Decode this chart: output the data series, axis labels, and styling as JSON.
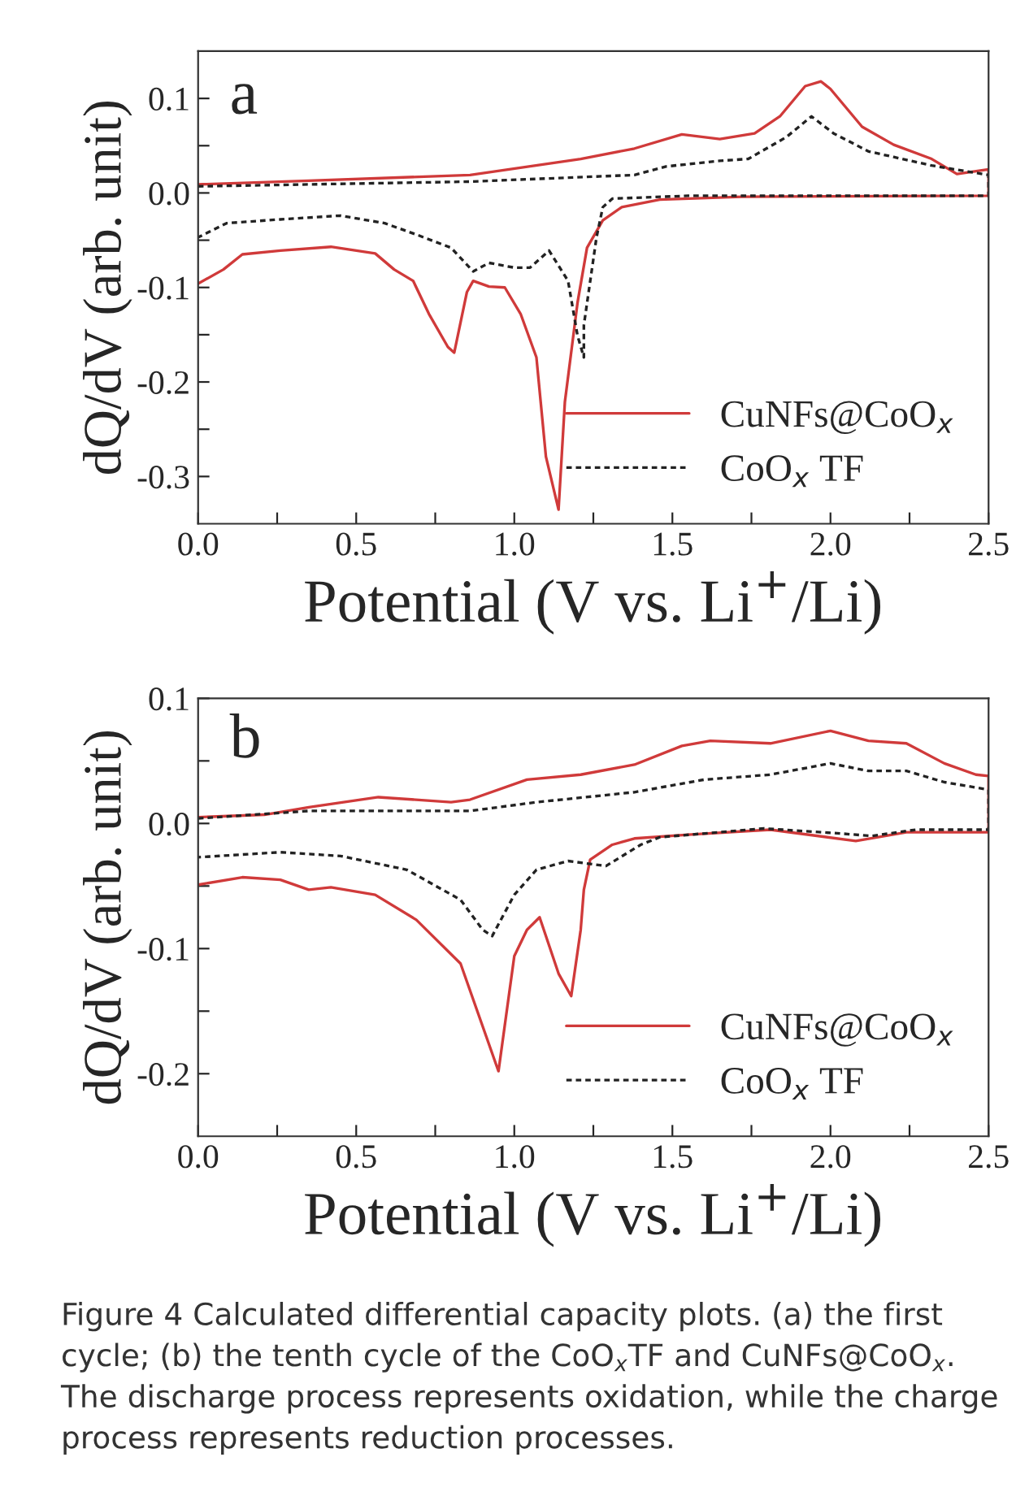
{
  "chart_data": [
    {
      "type": "line",
      "xlabel": "Potential (V vs. Li$^{+}$/Li)",
      "ylabel": "dQ/dV (arb. unit)",
      "annotations": [
        "a"
      ],
      "xlim": [
        0,
        2.5
      ],
      "ylim": [
        -0.35,
        0.15
      ],
      "xticks": [
        {
          "value": 0,
          "label": "0.0"
        },
        {
          "value": 0.25,
          "label": null
        },
        0.5,
        {
          "value": 0.75,
          "label": null
        },
        {
          "value": 1,
          "label": "1.0"
        },
        {
          "value": 1.25,
          "label": null
        },
        1.5,
        {
          "value": 1.75,
          "label": null
        },
        {
          "value": 2,
          "label": "2.0"
        },
        {
          "value": 2.25,
          "label": null
        },
        2.5
      ],
      "yticks": [
        -0.3,
        {
          "value": -0.25,
          "label": null
        },
        -0.2,
        {
          "value": -0.15,
          "label": null
        },
        -0.1,
        {
          "value": -0.05,
          "label": null
        },
        {
          "value": 0,
          "label": "0.0"
        },
        {
          "value": 0.05,
          "label": null
        },
        0.1
      ],
      "legend": "bottom right",
      "grid": false,
      "series": [
        {
          "name": "CuNFs@CoO$_{x}$",
          "color": "#d03a3a",
          "line_style": "solid",
          "x": [
            0,
            0.35,
            0.86,
            1.21,
            1.38,
            1.53,
            1.65,
            1.76,
            1.84,
            1.92,
            1.97,
            2.0,
            2.1,
            2.2,
            2.32,
            2.4,
            2.5,
            2.5,
            1.72,
            1.46,
            1.34,
            1.28,
            1.23,
            1.2,
            1.16,
            1.14,
            1.1,
            1.07,
            1.02,
            0.97,
            0.92,
            0.87,
            0.85,
            0.81,
            0.79,
            0.73,
            0.68,
            0.62,
            0.56,
            0.42,
            0.26,
            0.14,
            0.08,
            0
          ],
          "values": [
            0.009,
            0.013,
            0.019,
            0.036,
            0.047,
            0.062,
            0.057,
            0.063,
            0.081,
            0.113,
            0.118,
            0.11,
            0.07,
            0.051,
            0.036,
            0.02,
            0.025,
            -0.003,
            -0.004,
            -0.007,
            -0.015,
            -0.029,
            -0.058,
            -0.116,
            -0.221,
            -0.335,
            -0.279,
            -0.174,
            -0.128,
            -0.1,
            -0.099,
            -0.093,
            -0.105,
            -0.169,
            -0.163,
            -0.128,
            -0.093,
            -0.081,
            -0.064,
            -0.057,
            -0.061,
            -0.065,
            -0.081,
            -0.096
          ]
        },
        {
          "name": "CoO$_{x}$ TF",
          "color": "#222222",
          "line_style": "dotted",
          "x": [
            0,
            0.86,
            1.38,
            1.48,
            1.65,
            1.74,
            1.86,
            1.94,
            2.01,
            2.12,
            2.2,
            2.32,
            2.5,
            2.5,
            1.55,
            1.31,
            1.28,
            1.26,
            1.22,
            1.22,
            1.2,
            1.17,
            1.11,
            1.05,
            1.0,
            0.92,
            0.87,
            0.8,
            0.69,
            0.59,
            0.45,
            0.26,
            0.09,
            0
          ],
          "values": [
            0.007,
            0.012,
            0.019,
            0.028,
            0.034,
            0.036,
            0.059,
            0.081,
            0.063,
            0.044,
            0.038,
            0.029,
            0.019,
            -0.003,
            -0.003,
            -0.006,
            -0.015,
            -0.047,
            -0.14,
            -0.174,
            -0.151,
            -0.093,
            -0.061,
            -0.079,
            -0.079,
            -0.074,
            -0.083,
            -0.058,
            -0.044,
            -0.032,
            -0.024,
            -0.028,
            -0.032,
            -0.047
          ]
        }
      ]
    },
    {
      "type": "line",
      "xlabel": "Potential (V vs. Li$^{+}$/Li)",
      "ylabel": "dQ/dV (arb. unit)",
      "annotations": [
        "b",
        "Figure 4 Calculated differential capacity plots. (a) the first cycle; (b) the tenth cycle of the CoO$_{x}$TF and CuNFs@CoO$_{x}$. The discharge process represents oxidation, while the charge process represents reduction processes."
      ],
      "xlim": [
        0,
        2.5
      ],
      "ylim": [
        -0.25,
        0.1
      ],
      "xticks": [
        {
          "value": 0,
          "label": "0.0"
        },
        {
          "value": 0.25,
          "label": null
        },
        0.5,
        {
          "value": 0.75,
          "label": null
        },
        {
          "value": 1,
          "label": "1.0"
        },
        {
          "value": 1.25,
          "label": null
        },
        1.5,
        {
          "value": 1.75,
          "label": null
        },
        {
          "value": 2,
          "label": "2.0"
        },
        {
          "value": 2.25,
          "label": null
        },
        2.5
      ],
      "yticks": [
        -0.2,
        {
          "value": -0.15,
          "label": null
        },
        -0.1,
        {
          "value": -0.05,
          "label": null
        },
        {
          "value": 0,
          "label": "0.0"
        },
        {
          "value": 0.05,
          "label": null
        },
        0.1
      ],
      "legend": "bottom right",
      "grid": false,
      "series": [
        {
          "name": "CuNFs@CoO$_{x}$",
          "color": "#d03a3a",
          "line_style": "solid",
          "x": [
            0,
            0.21,
            0.35,
            0.57,
            0.8,
            0.86,
            1.04,
            1.21,
            1.38,
            1.53,
            1.62,
            1.81,
            2.0,
            2.12,
            2.24,
            2.36,
            2.46,
            2.5,
            2.5,
            2.24,
            2.08,
            1.81,
            1.55,
            1.38,
            1.31,
            1.24,
            1.22,
            1.21,
            1.18,
            1.14,
            1.08,
            1.04,
            1.0,
            0.95,
            0.83,
            0.69,
            0.56,
            0.42,
            0.35,
            0.26,
            0.14,
            0
          ],
          "values": [
            0.005,
            0.007,
            0.013,
            0.021,
            0.017,
            0.019,
            0.035,
            0.039,
            0.047,
            0.062,
            0.066,
            0.064,
            0.074,
            0.066,
            0.064,
            0.048,
            0.039,
            0.038,
            -0.007,
            -0.007,
            -0.014,
            -0.005,
            -0.009,
            -0.012,
            -0.017,
            -0.029,
            -0.053,
            -0.085,
            -0.138,
            -0.12,
            -0.075,
            -0.085,
            -0.106,
            -0.198,
            -0.112,
            -0.077,
            -0.057,
            -0.051,
            -0.053,
            -0.045,
            -0.043,
            -0.049
          ]
        },
        {
          "name": "CoO$_{x}$ TF",
          "color": "#222222",
          "line_style": "dotted",
          "x": [
            0,
            0.35,
            0.86,
            1.07,
            1.38,
            1.6,
            1.81,
            2.0,
            2.12,
            2.24,
            2.36,
            2.5,
            2.5,
            2.27,
            2.13,
            2.03,
            1.79,
            1.46,
            1.4,
            1.29,
            1.17,
            1.07,
            1.0,
            0.93,
            0.9,
            0.83,
            0.66,
            0.45,
            0.26,
            0
          ],
          "values": [
            0.004,
            0.01,
            0.01,
            0.017,
            0.025,
            0.035,
            0.039,
            0.048,
            0.042,
            0.042,
            0.033,
            0.027,
            -0.005,
            -0.005,
            -0.01,
            -0.008,
            -0.004,
            -0.011,
            -0.017,
            -0.034,
            -0.03,
            -0.037,
            -0.057,
            -0.09,
            -0.085,
            -0.061,
            -0.037,
            -0.026,
            -0.023,
            -0.027
          ]
        }
      ]
    }
  ]
}
